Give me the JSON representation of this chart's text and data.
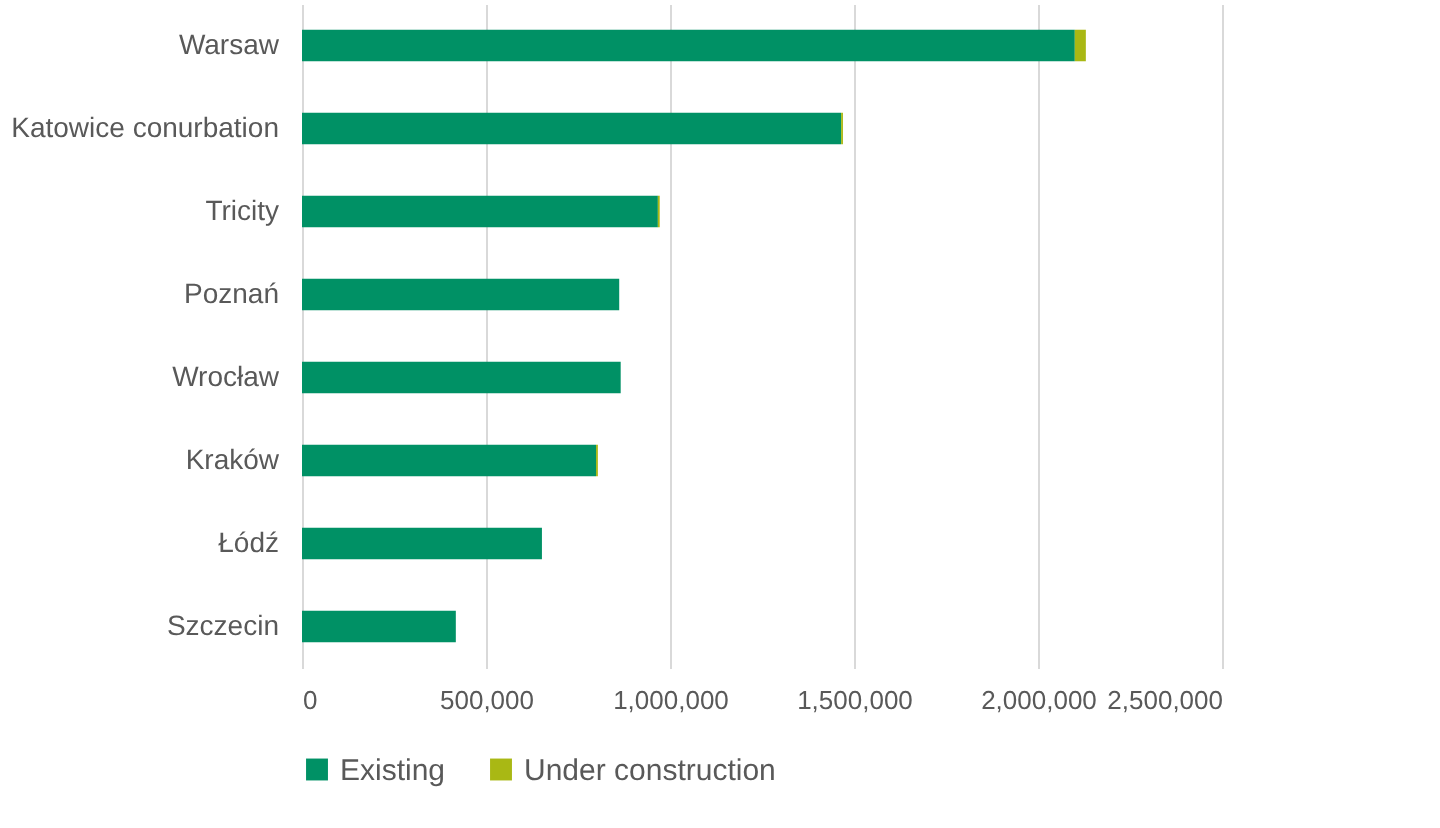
{
  "chart_data": {
    "type": "bar",
    "orientation": "horizontal",
    "stacked": true,
    "categories": [
      "Warsaw",
      "Katowice conurbation",
      "Tricity",
      "Poznań",
      "Wrocław",
      "Kraków",
      "Łódź",
      "Szczecin"
    ],
    "series": [
      {
        "name": "Existing",
        "color": "#009165",
        "values": [
          2100000,
          1465000,
          967000,
          862000,
          866000,
          799000,
          652000,
          418000
        ]
      },
      {
        "name": "Under construction",
        "color": "#a9b814",
        "values": [
          30000,
          5000,
          5000,
          0,
          0,
          5000,
          0,
          0
        ]
      }
    ],
    "xlim": [
      0,
      2500000
    ],
    "xticks": [
      0,
      {
        "value": 500000,
        "label": "500,000"
      },
      {
        "value": 1000000,
        "label": "1,000,000"
      },
      {
        "value": 1500000,
        "label": "1,500,000"
      },
      {
        "value": 2000000,
        "label": "2,000,000"
      },
      {
        "value": 2500000,
        "label": "2,500,000"
      }
    ],
    "grid": "x",
    "legend": "bottom"
  }
}
